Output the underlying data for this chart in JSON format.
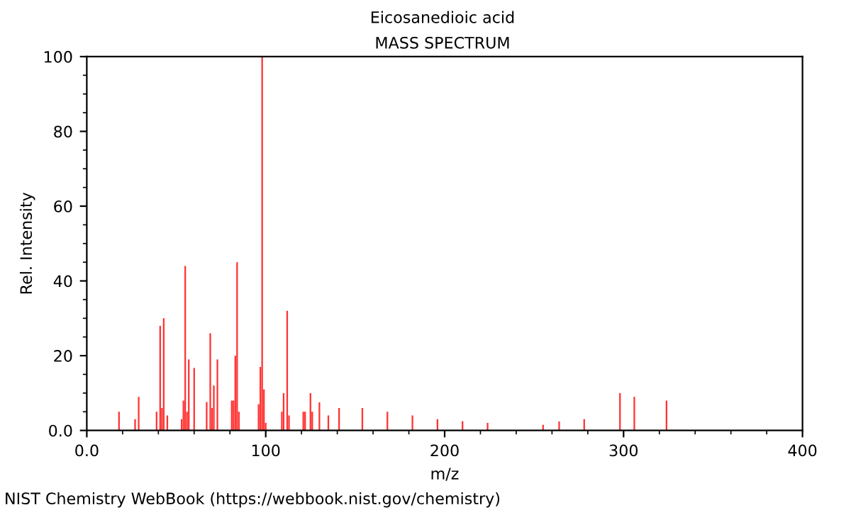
{
  "chart_data": {
    "type": "bar",
    "title": "Eicosanedioic acid",
    "subtitle": "MASS SPECTRUM",
    "xlabel": "m/z",
    "ylabel": "Rel. Intensity",
    "annotations": [
      "NIST Chemistry WebBook (https://webbook.nist.gov/chemistry)"
    ],
    "x": [
      18,
      27,
      29,
      39,
      41,
      42,
      43,
      45,
      53,
      54,
      55,
      56,
      57,
      60,
      67,
      69,
      70,
      71,
      73,
      81,
      82,
      83,
      84,
      85,
      96,
      97,
      98,
      99,
      100,
      109,
      110,
      112,
      113,
      121,
      122,
      125,
      126,
      130,
      135,
      141,
      154,
      168,
      182,
      196,
      210,
      224,
      255,
      264,
      278,
      298,
      306,
      324
    ],
    "values": [
      5,
      3,
      9,
      5,
      28,
      6,
      30,
      4,
      3,
      8,
      44,
      5,
      19,
      16.7,
      7.6,
      26,
      6,
      12,
      19,
      8,
      8,
      20,
      45,
      5,
      7,
      17,
      100,
      11,
      2,
      5,
      10,
      32,
      4,
      5,
      5,
      10,
      5,
      7.5,
      4,
      6,
      6,
      5,
      4,
      3,
      2.5,
      2,
      1.5,
      2.4,
      3,
      10,
      9,
      8
    ],
    "color": "#ff3333",
    "xlim": [
      0,
      400
    ],
    "xticks": [
      {
        "value": 0,
        "label": "0.0"
      },
      {
        "value": 100,
        "label": "100"
      },
      {
        "value": 200,
        "label": "200"
      },
      {
        "value": 300,
        "label": "300"
      },
      {
        "value": 400,
        "label": "400"
      }
    ],
    "ylim": [
      0,
      100
    ],
    "yticks": [
      {
        "value": 0,
        "label": "0.0"
      },
      20,
      40,
      60,
      80,
      100
    ],
    "grid": false,
    "legend": false
  }
}
